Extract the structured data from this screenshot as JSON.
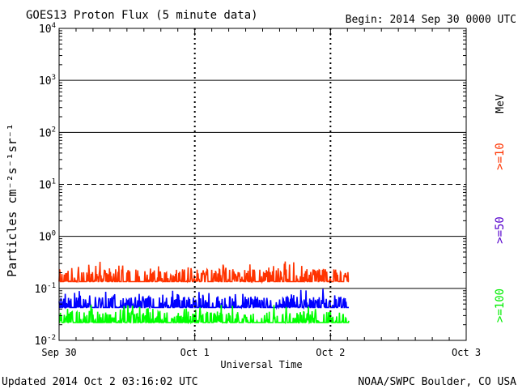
{
  "chart_data": {
    "type": "line",
    "title": "GOES13 Proton Flux (5 minute data)",
    "begin_label": "Begin: 2014 Sep 30 0000 UTC",
    "ylabel": "Particles cm⁻²s⁻¹sr⁻¹",
    "xlabel": "Universal Time",
    "x_ticks": [
      "Sep 30",
      "Oct 1",
      "Oct 2",
      "Oct 3"
    ],
    "x_range_days": [
      0,
      3
    ],
    "y_scale": "log",
    "y_exponent_range": [
      -2,
      4
    ],
    "y_tick_base": "10",
    "y_tick_exponents": [
      "4",
      "3",
      "2",
      "1",
      "0",
      "-1",
      "-2"
    ],
    "threshold_exponent": 1,
    "series": [
      {
        "name": ">=10",
        "color": "#ff3300",
        "unit": "MeV",
        "baseline": 0.135,
        "amplitude": 0.1,
        "min": 0.1,
        "max": 0.42
      },
      {
        "name": ">=50",
        "color": "#0000ff",
        "baseline": 0.043,
        "amplitude": 0.026,
        "min": 0.036,
        "max": 0.11
      },
      {
        "name": ">=100",
        "color": "#00ff00",
        "baseline": 0.022,
        "amplitude": 0.014,
        "min": 0.017,
        "max": 0.048
      }
    ],
    "data_end_day": 2.135,
    "sample_interval_minutes": 5
  },
  "footer": {
    "updated": "Updated 2014 Oct  2 03:16:02 UTC",
    "source": "NOAA/SWPC Boulder, CO USA"
  }
}
